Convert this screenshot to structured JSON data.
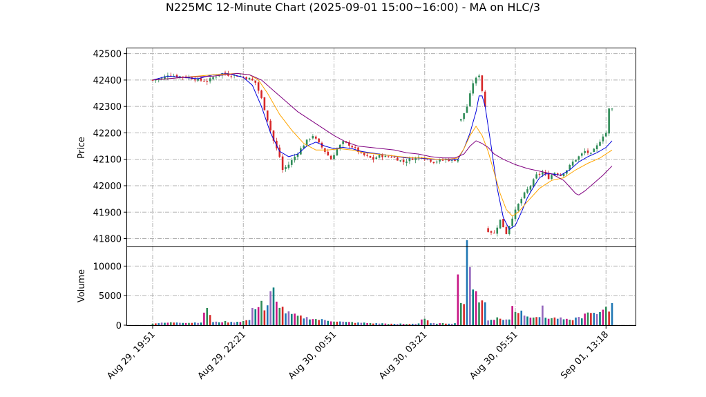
{
  "chart_data": {
    "type": "candlestick",
    "title": "N225MC 12-Minute Chart (2025-09-01 15:00~16:00) - MA on HLC/3",
    "x_tick_labels": [
      "Aug 29, 19:51",
      "Aug 29, 22:21",
      "Aug 30, 00:51",
      "Aug 30, 03:21",
      "Aug 30, 05:51",
      "Sep 01, 13:18"
    ],
    "price_panel": {
      "ylabel": "Price",
      "ylim": [
        41770,
        42520
      ],
      "yticks": [
        41800,
        41900,
        42000,
        42100,
        42200,
        42300,
        42400,
        42500
      ],
      "grid": true,
      "up_color": "#2e8b57",
      "down_color": "#d62728",
      "close_anchors": [
        [
          0,
          42400
        ],
        [
          3,
          42405
        ],
        [
          5,
          42420
        ],
        [
          8,
          42415
        ],
        [
          12,
          42410
        ],
        [
          15,
          42400
        ],
        [
          18,
          42395
        ],
        [
          20,
          42410
        ],
        [
          23,
          42425
        ],
        [
          25,
          42420
        ],
        [
          29,
          42415
        ],
        [
          32,
          42405
        ],
        [
          34,
          42390
        ],
        [
          36,
          42330
        ],
        [
          38,
          42250
        ],
        [
          40,
          42170
        ],
        [
          42,
          42110
        ],
        [
          43,
          42060
        ],
        [
          45,
          42080
        ],
        [
          47,
          42110
        ],
        [
          49,
          42140
        ],
        [
          51,
          42170
        ],
        [
          53,
          42190
        ],
        [
          55,
          42160
        ],
        [
          57,
          42130
        ],
        [
          59,
          42100
        ],
        [
          61,
          42140
        ],
        [
          63,
          42165
        ],
        [
          65,
          42155
        ],
        [
          67,
          42140
        ],
        [
          69,
          42120
        ],
        [
          71,
          42110
        ],
        [
          73,
          42100
        ],
        [
          75,
          42115
        ],
        [
          77,
          42110
        ],
        [
          79,
          42110
        ],
        [
          81,
          42100
        ],
        [
          83,
          42090
        ],
        [
          85,
          42100
        ],
        [
          87,
          42105
        ],
        [
          89,
          42110
        ],
        [
          91,
          42100
        ],
        [
          93,
          42090
        ],
        [
          95,
          42095
        ],
        [
          97,
          42100
        ],
        [
          99,
          42095
        ],
        [
          101,
          42100
        ],
        [
          102,
          42250
        ],
        [
          104,
          42300
        ],
        [
          106,
          42390
        ],
        [
          108,
          42420
        ],
        [
          110,
          42300
        ],
        [
          111,
          41830
        ],
        [
          113,
          41820
        ],
        [
          115,
          41870
        ],
        [
          117,
          41820
        ],
        [
          119,
          41880
        ],
        [
          121,
          41930
        ],
        [
          123,
          41970
        ],
        [
          125,
          42000
        ],
        [
          127,
          42040
        ],
        [
          129,
          42050
        ],
        [
          131,
          42030
        ],
        [
          133,
          42050
        ],
        [
          135,
          42040
        ],
        [
          137,
          42060
        ],
        [
          139,
          42090
        ],
        [
          141,
          42110
        ],
        [
          143,
          42130
        ],
        [
          145,
          42120
        ],
        [
          147,
          42150
        ],
        [
          149,
          42190
        ],
        [
          150,
          42200
        ],
        [
          151,
          42290
        ]
      ],
      "ma_series": [
        {
          "color": "#0000dd",
          "points": [
            [
              0,
              42400
            ],
            [
              5,
              42415
            ],
            [
              10,
              42410
            ],
            [
              15,
              42405
            ],
            [
              20,
              42420
            ],
            [
              25,
              42425
            ],
            [
              30,
              42410
            ],
            [
              33,
              42380
            ],
            [
              36,
              42300
            ],
            [
              39,
              42200
            ],
            [
              42,
              42130
            ],
            [
              45,
              42110
            ],
            [
              48,
              42120
            ],
            [
              51,
              42150
            ],
            [
              54,
              42165
            ],
            [
              57,
              42150
            ],
            [
              60,
              42140
            ],
            [
              63,
              42145
            ],
            [
              66,
              42140
            ],
            [
              69,
              42130
            ],
            [
              72,
              42125
            ],
            [
              75,
              42120
            ],
            [
              78,
              42115
            ],
            [
              81,
              42110
            ],
            [
              84,
              42105
            ],
            [
              87,
              42105
            ],
            [
              90,
              42103
            ],
            [
              93,
              42100
            ],
            [
              96,
              42100
            ],
            [
              99,
              42097
            ],
            [
              101,
              42100
            ],
            [
              103,
              42140
            ],
            [
              105,
              42200
            ],
            [
              107,
              42280
            ],
            [
              108,
              42340
            ],
            [
              109,
              42340
            ],
            [
              110,
              42300
            ],
            [
              112,
              42150
            ],
            [
              114,
              41990
            ],
            [
              116,
              41880
            ],
            [
              118,
              41835
            ],
            [
              120,
              41850
            ],
            [
              122,
              41900
            ],
            [
              124,
              41955
            ],
            [
              126,
              41995
            ],
            [
              128,
              42030
            ],
            [
              130,
              42045
            ],
            [
              132,
              42045
            ],
            [
              135,
              42040
            ],
            [
              138,
              42060
            ],
            [
              141,
              42090
            ],
            [
              144,
              42110
            ],
            [
              147,
              42125
            ],
            [
              150,
              42145
            ],
            [
              152,
              42170
            ]
          ]
        },
        {
          "color": "#ffa500",
          "points": [
            [
              0,
              42400
            ],
            [
              10,
              42410
            ],
            [
              20,
              42420
            ],
            [
              28,
              42425
            ],
            [
              32,
              42420
            ],
            [
              35,
              42400
            ],
            [
              38,
              42350
            ],
            [
              42,
              42270
            ],
            [
              46,
              42210
            ],
            [
              50,
              42160
            ],
            [
              54,
              42135
            ],
            [
              58,
              42135
            ],
            [
              62,
              42140
            ],
            [
              66,
              42135
            ],
            [
              70,
              42125
            ],
            [
              74,
              42120
            ],
            [
              78,
              42115
            ],
            [
              82,
              42110
            ],
            [
              86,
              42105
            ],
            [
              90,
              42105
            ],
            [
              94,
              42100
            ],
            [
              98,
              42100
            ],
            [
              101,
              42105
            ],
            [
              103,
              42140
            ],
            [
              105,
              42190
            ],
            [
              107,
              42225
            ],
            [
              109,
              42190
            ],
            [
              111,
              42130
            ],
            [
              113,
              42050
            ],
            [
              115,
              41970
            ],
            [
              117,
              41910
            ],
            [
              119,
              41885
            ],
            [
              121,
              41900
            ],
            [
              124,
              41940
            ],
            [
              128,
              41990
            ],
            [
              132,
              42020
            ],
            [
              136,
              42030
            ],
            [
              140,
              42060
            ],
            [
              144,
              42085
            ],
            [
              148,
              42105
            ],
            [
              152,
              42135
            ]
          ]
        },
        {
          "color": "#800080",
          "points": [
            [
              0,
              42400
            ],
            [
              10,
              42410
            ],
            [
              20,
              42415
            ],
            [
              28,
              42425
            ],
            [
              32,
              42420
            ],
            [
              36,
              42400
            ],
            [
              40,
              42360
            ],
            [
              44,
              42320
            ],
            [
              48,
              42280
            ],
            [
              52,
              42250
            ],
            [
              56,
              42220
            ],
            [
              60,
              42190
            ],
            [
              64,
              42165
            ],
            [
              68,
              42150
            ],
            [
              72,
              42145
            ],
            [
              76,
              42140
            ],
            [
              80,
              42135
            ],
            [
              84,
              42125
            ],
            [
              88,
              42120
            ],
            [
              92,
              42110
            ],
            [
              96,
              42105
            ],
            [
              100,
              42105
            ],
            [
              103,
              42120
            ],
            [
              105,
              42150
            ],
            [
              107,
              42170
            ],
            [
              109,
              42160
            ],
            [
              111,
              42145
            ],
            [
              113,
              42120
            ],
            [
              116,
              42100
            ],
            [
              120,
              42080
            ],
            [
              124,
              42065
            ],
            [
              128,
              42055
            ],
            [
              132,
              42045
            ],
            [
              136,
              42020
            ],
            [
              138,
              41995
            ],
            [
              140,
              41970
            ],
            [
              141,
              41965
            ],
            [
              143,
              41980
            ],
            [
              146,
              42010
            ],
            [
              149,
              42040
            ],
            [
              152,
              42075
            ]
          ]
        }
      ]
    },
    "volume_panel": {
      "ylabel": "Volume",
      "ylim": [
        0,
        13200
      ],
      "yticks": [
        0,
        5000,
        10000
      ],
      "grid": true,
      "colors": [
        "#2e8b57",
        "#d62728",
        "#1f77b4",
        "#9467bd",
        "#008080",
        "#c71585"
      ],
      "anchors": [
        [
          0,
          300
        ],
        [
          4,
          400
        ],
        [
          8,
          500
        ],
        [
          12,
          400
        ],
        [
          16,
          500
        ],
        [
          18,
          3100
        ],
        [
          20,
          500
        ],
        [
          24,
          600
        ],
        [
          26,
          500
        ],
        [
          30,
          700
        ],
        [
          32,
          900
        ],
        [
          33,
          2500
        ],
        [
          34,
          3100
        ],
        [
          35,
          3500
        ],
        [
          36,
          4100
        ],
        [
          37,
          2600
        ],
        [
          38,
          3000
        ],
        [
          39,
          5200
        ],
        [
          40,
          5700
        ],
        [
          41,
          3700
        ],
        [
          42,
          3500
        ],
        [
          44,
          2200
        ],
        [
          46,
          1800
        ],
        [
          48,
          1500
        ],
        [
          50,
          1300
        ],
        [
          52,
          1200
        ],
        [
          54,
          1000
        ],
        [
          56,
          900
        ],
        [
          58,
          800
        ],
        [
          60,
          700
        ],
        [
          62,
          600
        ],
        [
          64,
          500
        ],
        [
          66,
          500
        ],
        [
          68,
          400
        ],
        [
          70,
          400
        ],
        [
          72,
          350
        ],
        [
          74,
          300
        ],
        [
          76,
          300
        ],
        [
          78,
          250
        ],
        [
          80,
          200
        ],
        [
          82,
          250
        ],
        [
          84,
          200
        ],
        [
          86,
          250
        ],
        [
          88,
          300
        ],
        [
          89,
          1000
        ],
        [
          90,
          1100
        ],
        [
          92,
          300
        ],
        [
          94,
          300
        ],
        [
          96,
          300
        ],
        [
          98,
          300
        ],
        [
          100,
          300
        ],
        [
          101,
          10600
        ],
        [
          102,
          3800
        ],
        [
          103,
          3900
        ],
        [
          104,
          12200
        ],
        [
          105,
          8900
        ],
        [
          106,
          7200
        ],
        [
          107,
          6200
        ],
        [
          108,
          4200
        ],
        [
          109,
          4000
        ],
        [
          110,
          3800
        ],
        [
          111,
          800
        ],
        [
          112,
          1000
        ],
        [
          114,
          1200
        ],
        [
          116,
          1000
        ],
        [
          118,
          900
        ],
        [
          119,
          3200
        ],
        [
          120,
          2500
        ],
        [
          121,
          2300
        ],
        [
          122,
          2600
        ],
        [
          123,
          1800
        ],
        [
          124,
          1400
        ],
        [
          126,
          1600
        ],
        [
          128,
          1500
        ],
        [
          129,
          2800
        ],
        [
          130,
          1300
        ],
        [
          132,
          1200
        ],
        [
          134,
          1200
        ],
        [
          136,
          1000
        ],
        [
          138,
          800
        ],
        [
          140,
          1200
        ],
        [
          142,
          1400
        ],
        [
          144,
          2000
        ],
        [
          146,
          1800
        ],
        [
          148,
          2200
        ],
        [
          150,
          3700
        ],
        [
          151,
          2000
        ],
        [
          152,
          4200
        ]
      ]
    },
    "n_bars": 153
  }
}
